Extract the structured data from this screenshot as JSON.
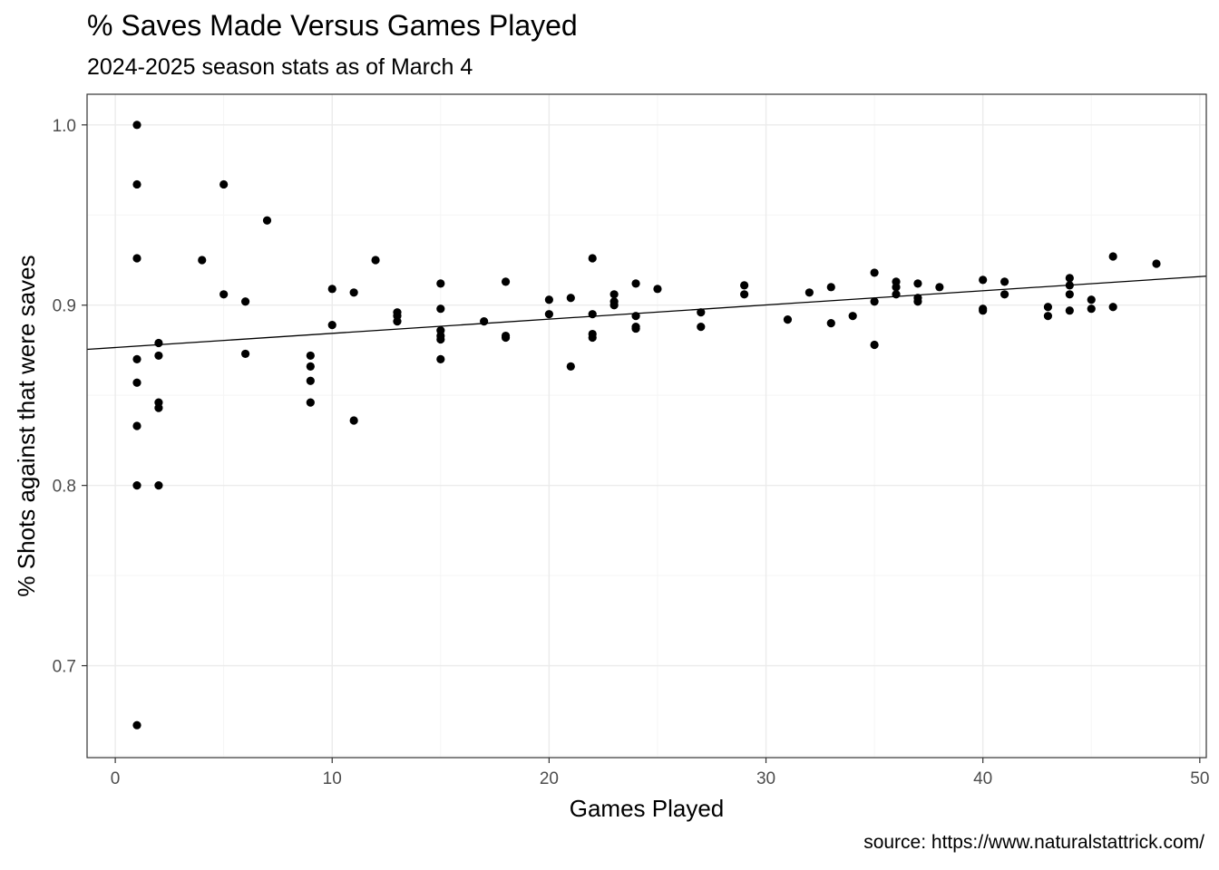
{
  "chart_data": {
    "type": "scatter",
    "title": "% Saves Made Versus Games Played",
    "subtitle": "2024-2025 season stats as of March 4",
    "caption": "source: https://www.naturalstattrick.com/",
    "xlabel": "Games Played",
    "ylabel": "% Shots against that were saves",
    "xlim": [
      -1.3,
      50.3
    ],
    "ylim": [
      0.649,
      1.017
    ],
    "x_ticks": [
      0,
      10,
      20,
      30,
      40,
      50
    ],
    "y_ticks": [
      0.7,
      0.8,
      0.9,
      1.0
    ],
    "x_tick_labels": [
      "0",
      "10",
      "20",
      "30",
      "40",
      "50"
    ],
    "y_tick_labels": [
      "0.7",
      "0.8",
      "0.9",
      "1.0"
    ],
    "grid": true,
    "trend_line": {
      "intercept": 0.8765,
      "slope": 0.000787
    },
    "colors": {
      "points": "#000000",
      "grid_major": "#ebebeb",
      "grid_minor": "#f5f5f5",
      "panel_border": "#333333"
    },
    "points": [
      {
        "x": 1,
        "y": 1.0
      },
      {
        "x": 1,
        "y": 0.967
      },
      {
        "x": 1,
        "y": 0.926
      },
      {
        "x": 1,
        "y": 0.87
      },
      {
        "x": 1,
        "y": 0.857
      },
      {
        "x": 1,
        "y": 0.833
      },
      {
        "x": 1,
        "y": 0.8
      },
      {
        "x": 1,
        "y": 0.667
      },
      {
        "x": 2,
        "y": 0.879
      },
      {
        "x": 2,
        "y": 0.872
      },
      {
        "x": 2,
        "y": 0.846
      },
      {
        "x": 2,
        "y": 0.843
      },
      {
        "x": 2,
        "y": 0.8
      },
      {
        "x": 4,
        "y": 0.925
      },
      {
        "x": 5,
        "y": 0.967
      },
      {
        "x": 5,
        "y": 0.906
      },
      {
        "x": 6,
        "y": 0.902
      },
      {
        "x": 6,
        "y": 0.873
      },
      {
        "x": 7,
        "y": 0.947
      },
      {
        "x": 9,
        "y": 0.872
      },
      {
        "x": 9,
        "y": 0.866
      },
      {
        "x": 9,
        "y": 0.858
      },
      {
        "x": 9,
        "y": 0.846
      },
      {
        "x": 10,
        "y": 0.909
      },
      {
        "x": 10,
        "y": 0.889
      },
      {
        "x": 11,
        "y": 0.907
      },
      {
        "x": 11,
        "y": 0.836
      },
      {
        "x": 12,
        "y": 0.925
      },
      {
        "x": 13,
        "y": 0.896
      },
      {
        "x": 13,
        "y": 0.894
      },
      {
        "x": 13,
        "y": 0.891
      },
      {
        "x": 15,
        "y": 0.912
      },
      {
        "x": 15,
        "y": 0.898
      },
      {
        "x": 15,
        "y": 0.886
      },
      {
        "x": 15,
        "y": 0.883
      },
      {
        "x": 15,
        "y": 0.881
      },
      {
        "x": 15,
        "y": 0.87
      },
      {
        "x": 17,
        "y": 0.891
      },
      {
        "x": 18,
        "y": 0.913
      },
      {
        "x": 18,
        "y": 0.883
      },
      {
        "x": 18,
        "y": 0.882
      },
      {
        "x": 20,
        "y": 0.903
      },
      {
        "x": 20,
        "y": 0.895
      },
      {
        "x": 21,
        "y": 0.904
      },
      {
        "x": 21,
        "y": 0.866
      },
      {
        "x": 22,
        "y": 0.926
      },
      {
        "x": 22,
        "y": 0.895
      },
      {
        "x": 22,
        "y": 0.884
      },
      {
        "x": 22,
        "y": 0.882
      },
      {
        "x": 23,
        "y": 0.906
      },
      {
        "x": 23,
        "y": 0.902
      },
      {
        "x": 23,
        "y": 0.9
      },
      {
        "x": 24,
        "y": 0.912
      },
      {
        "x": 24,
        "y": 0.894
      },
      {
        "x": 24,
        "y": 0.888
      },
      {
        "x": 24,
        "y": 0.887
      },
      {
        "x": 25,
        "y": 0.909
      },
      {
        "x": 27,
        "y": 0.896
      },
      {
        "x": 27,
        "y": 0.888
      },
      {
        "x": 29,
        "y": 0.911
      },
      {
        "x": 29,
        "y": 0.906
      },
      {
        "x": 31,
        "y": 0.892
      },
      {
        "x": 32,
        "y": 0.907
      },
      {
        "x": 33,
        "y": 0.91
      },
      {
        "x": 33,
        "y": 0.89
      },
      {
        "x": 34,
        "y": 0.894
      },
      {
        "x": 35,
        "y": 0.918
      },
      {
        "x": 35,
        "y": 0.902
      },
      {
        "x": 35,
        "y": 0.878
      },
      {
        "x": 36,
        "y": 0.913
      },
      {
        "x": 36,
        "y": 0.91
      },
      {
        "x": 36,
        "y": 0.906
      },
      {
        "x": 37,
        "y": 0.912
      },
      {
        "x": 37,
        "y": 0.904
      },
      {
        "x": 37,
        "y": 0.902
      },
      {
        "x": 38,
        "y": 0.91
      },
      {
        "x": 40,
        "y": 0.914
      },
      {
        "x": 40,
        "y": 0.898
      },
      {
        "x": 40,
        "y": 0.897
      },
      {
        "x": 41,
        "y": 0.913
      },
      {
        "x": 41,
        "y": 0.906
      },
      {
        "x": 43,
        "y": 0.899
      },
      {
        "x": 43,
        "y": 0.894
      },
      {
        "x": 44,
        "y": 0.915
      },
      {
        "x": 44,
        "y": 0.911
      },
      {
        "x": 44,
        "y": 0.906
      },
      {
        "x": 44,
        "y": 0.897
      },
      {
        "x": 45,
        "y": 0.903
      },
      {
        "x": 45,
        "y": 0.898
      },
      {
        "x": 46,
        "y": 0.927
      },
      {
        "x": 46,
        "y": 0.899
      },
      {
        "x": 48,
        "y": 0.923
      }
    ]
  }
}
